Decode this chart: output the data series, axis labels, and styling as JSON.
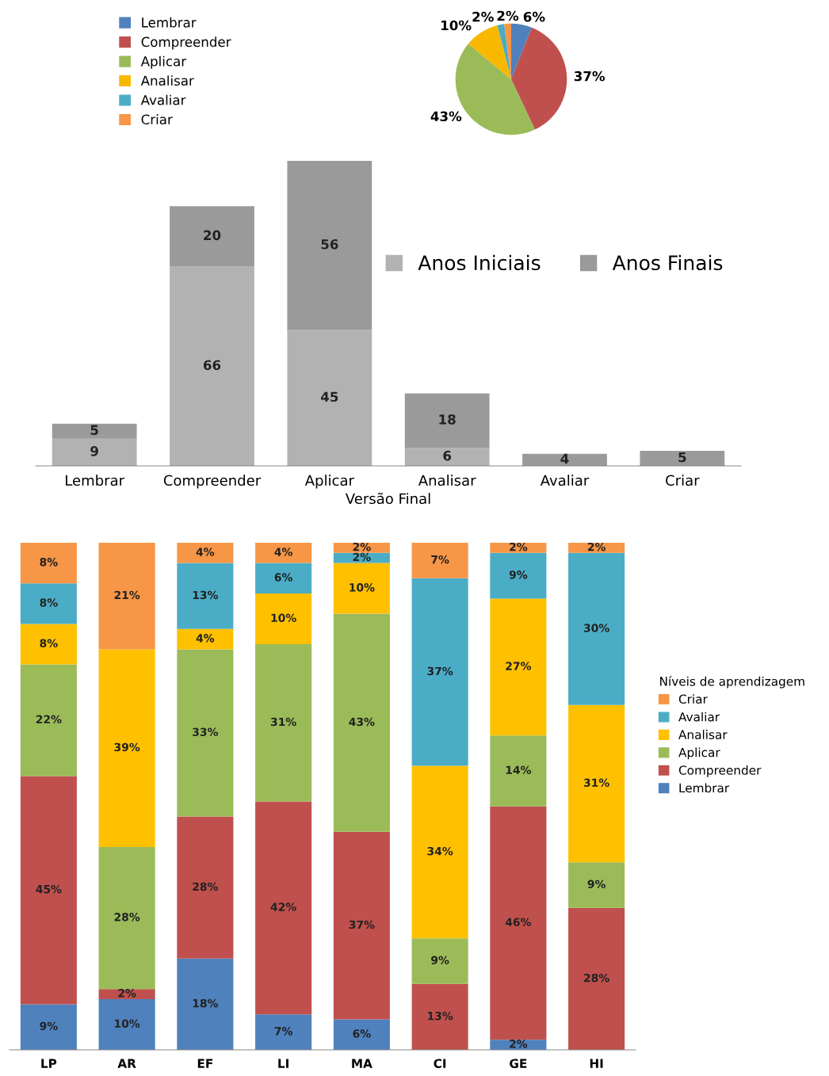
{
  "chart_data": [
    {
      "type": "pie",
      "categories": [
        "Lembrar",
        "Compreender",
        "Aplicar",
        "Analisar",
        "Avaliar",
        "Criar"
      ],
      "values": [
        6,
        37,
        43,
        10,
        2,
        2
      ],
      "colors": [
        "#4f81bd",
        "#c0504d",
        "#9bbb59",
        "#f9b800",
        "#4bacc6",
        "#f79646"
      ],
      "value_labels": [
        "6%",
        "37%",
        "43%",
        "10%",
        "2%",
        "2%"
      ],
      "legend": "left"
    },
    {
      "type": "bar",
      "stacked": true,
      "categories": [
        "Lembrar",
        "Compreender",
        "Aplicar",
        "Analisar",
        "Avaliar",
        "Criar"
      ],
      "xlabel": "Versão Final",
      "series": [
        {
          "name": "Anos Iniciais",
          "color": "#b2b2b2",
          "values": [
            9,
            66,
            45,
            6,
            null,
            null
          ]
        },
        {
          "name": "Anos Finais",
          "color": "#9a9a9a",
          "values": [
            5,
            20,
            56,
            18,
            4,
            5
          ]
        }
      ],
      "data_labels": true,
      "legend": "top right"
    },
    {
      "type": "bar",
      "stacked": true,
      "categories": [
        "LP",
        "AR",
        "EF",
        "LI",
        "MA",
        "CI",
        "GE",
        "HI"
      ],
      "legend_title": "Níveis de aprendizagem",
      "series": [
        {
          "name": "Lembrar",
          "color": "#4f81bd",
          "values": [
            9,
            10,
            18,
            7,
            6,
            null,
            2,
            null
          ],
          "value_labels": [
            "9%",
            "10%",
            "18%",
            "7%",
            "6%",
            null,
            "2%",
            null
          ]
        },
        {
          "name": "Compreender",
          "color": "#c0504d",
          "values": [
            45,
            2,
            28,
            42,
            37,
            13,
            46,
            28
          ],
          "value_labels": [
            "45%",
            "2%",
            "28%",
            "42%",
            "37%",
            "13%",
            "46%",
            "28%"
          ]
        },
        {
          "name": "Aplicar",
          "color": "#9bbb59",
          "values": [
            22,
            28,
            33,
            31,
            43,
            9,
            14,
            9
          ],
          "value_labels": [
            "22%",
            "28%",
            "33%",
            "31%",
            "43%",
            "9%",
            "14%",
            "9%"
          ]
        },
        {
          "name": "Analisar",
          "color": "#ffc000",
          "values": [
            8,
            39,
            4,
            10,
            10,
            34,
            27,
            31
          ],
          "value_labels": [
            "8%",
            "39%",
            "4%",
            "10%",
            "10%",
            "34%",
            "27%",
            "31%"
          ]
        },
        {
          "name": "Avaliar",
          "color": "#4bacc6",
          "values": [
            8,
            null,
            13,
            6,
            2,
            37,
            9,
            30
          ],
          "value_labels": [
            "8%",
            null,
            "13%",
            "6%",
            "2%",
            "37%",
            "9%",
            "30%"
          ]
        },
        {
          "name": "Criar",
          "color": "#f79646",
          "values": [
            8,
            21,
            4,
            4,
            2,
            7,
            2,
            2
          ],
          "value_labels": [
            "8%",
            "21%",
            "4%",
            "4%",
            "2%",
            "7%",
            "2%",
            "2%"
          ]
        }
      ],
      "legend": "right"
    }
  ]
}
